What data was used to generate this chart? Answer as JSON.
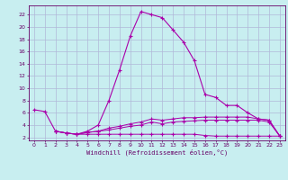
{
  "xlabel": "Windchill (Refroidissement éolien,°C)",
  "bg_color": "#c8eef0",
  "grid_color": "#b0b8d8",
  "line_color": "#aa00aa",
  "xlim": [
    -0.5,
    23.5
  ],
  "ylim": [
    1.5,
    23.5
  ],
  "xticks": [
    0,
    1,
    2,
    3,
    4,
    5,
    6,
    7,
    8,
    9,
    10,
    11,
    12,
    13,
    14,
    15,
    16,
    17,
    18,
    19,
    20,
    21,
    22,
    23
  ],
  "yticks": [
    2,
    4,
    6,
    8,
    10,
    12,
    14,
    16,
    18,
    20,
    22
  ],
  "curve1_x": [
    0,
    1,
    2,
    3,
    4,
    5,
    6,
    7,
    8,
    9,
    10,
    11,
    12,
    13,
    14,
    15,
    16,
    17,
    18,
    19,
    20,
    21,
    22,
    23
  ],
  "curve1_y": [
    6.5,
    6.2,
    3.0,
    2.7,
    2.5,
    3.0,
    4.0,
    8.0,
    13.0,
    18.5,
    22.5,
    22.0,
    21.5,
    19.5,
    17.5,
    14.5,
    9.0,
    8.5,
    7.2,
    7.2,
    6.0,
    5.0,
    4.8,
    2.2
  ],
  "curve2_x": [
    2,
    3,
    4,
    5,
    6,
    7,
    8,
    9,
    10,
    11,
    12,
    13,
    14,
    15,
    16,
    17,
    18,
    19,
    20,
    21,
    22,
    23
  ],
  "curve2_y": [
    3.0,
    2.7,
    2.5,
    2.8,
    3.0,
    3.5,
    3.8,
    4.2,
    4.5,
    5.0,
    4.8,
    5.0,
    5.2,
    5.2,
    5.3,
    5.3,
    5.3,
    5.3,
    5.3,
    5.0,
    4.8,
    2.2
  ],
  "curve3_x": [
    2,
    3,
    4,
    5,
    6,
    7,
    8,
    9,
    10,
    11,
    12,
    13,
    14,
    15,
    16,
    17,
    18,
    19,
    20,
    21,
    22,
    23
  ],
  "curve3_y": [
    3.0,
    2.7,
    2.5,
    2.8,
    3.0,
    3.2,
    3.5,
    3.8,
    4.0,
    4.5,
    4.2,
    4.5,
    4.6,
    4.7,
    4.8,
    4.8,
    4.8,
    4.8,
    4.8,
    4.8,
    4.5,
    2.2
  ],
  "curve4_x": [
    2,
    3,
    4,
    5,
    6,
    7,
    8,
    9,
    10,
    11,
    12,
    13,
    14,
    15,
    16,
    17,
    18,
    19,
    20,
    21,
    22,
    23
  ],
  "curve4_y": [
    3.0,
    2.7,
    2.5,
    2.5,
    2.5,
    2.5,
    2.5,
    2.5,
    2.5,
    2.5,
    2.5,
    2.5,
    2.5,
    2.5,
    2.3,
    2.2,
    2.2,
    2.2,
    2.2,
    2.2,
    2.2,
    2.2
  ]
}
